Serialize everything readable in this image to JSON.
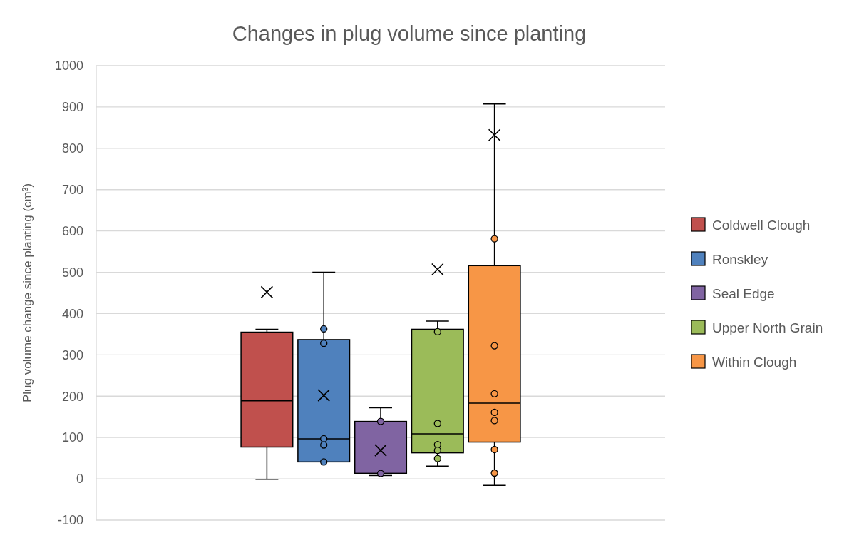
{
  "chart_data": {
    "type": "box",
    "title": "Changes in plug volume since planting",
    "ylabel": "Plug volume change since planting (cm³)",
    "categories": [
      null
    ],
    "ylim": [
      -100,
      1000
    ],
    "yticks": [
      -100,
      0,
      100,
      200,
      300,
      400,
      500,
      600,
      700,
      800,
      900,
      1000
    ],
    "grid": "y",
    "legend": "right",
    "series": [
      {
        "name": "Coldwell Clough",
        "color": "#c0504d",
        "boxes": [
          {
            "low": -1,
            "q1": 77,
            "median": 189,
            "q3": 355,
            "high": 362,
            "mean": 452
          }
        ]
      },
      {
        "name": "Ronskley",
        "color": "#4f81bd",
        "boxes": [
          {
            "low": 41,
            "q1": 41,
            "median": 97,
            "q3": 337,
            "high": 500,
            "mean": 202,
            "outliers": [
              363,
              328,
              97,
              82,
              41
            ]
          }
        ]
      },
      {
        "name": "Seal Edge",
        "color": "#8064a2",
        "boxes": [
          {
            "low": 8,
            "q1": 13,
            "median": 13,
            "q3": 139,
            "high": 172,
            "mean": 69,
            "outliers": [
              139,
              13
            ]
          }
        ]
      },
      {
        "name": "Upper North Grain",
        "color": "#9bbb59",
        "boxes": [
          {
            "low": 31,
            "q1": 63,
            "median": 109,
            "q3": 362,
            "high": 382,
            "mean": 507,
            "outliers": [
              356,
              134,
              83,
              69,
              49
            ]
          }
        ]
      },
      {
        "name": "Within Clough",
        "color": "#f79646",
        "boxes": [
          {
            "low": -16,
            "q1": 89,
            "median": 183,
            "q3": 516,
            "high": 907,
            "mean": 832,
            "outliers": [
              581,
              322,
              206,
              161,
              141,
              71,
              14
            ]
          }
        ]
      }
    ]
  }
}
